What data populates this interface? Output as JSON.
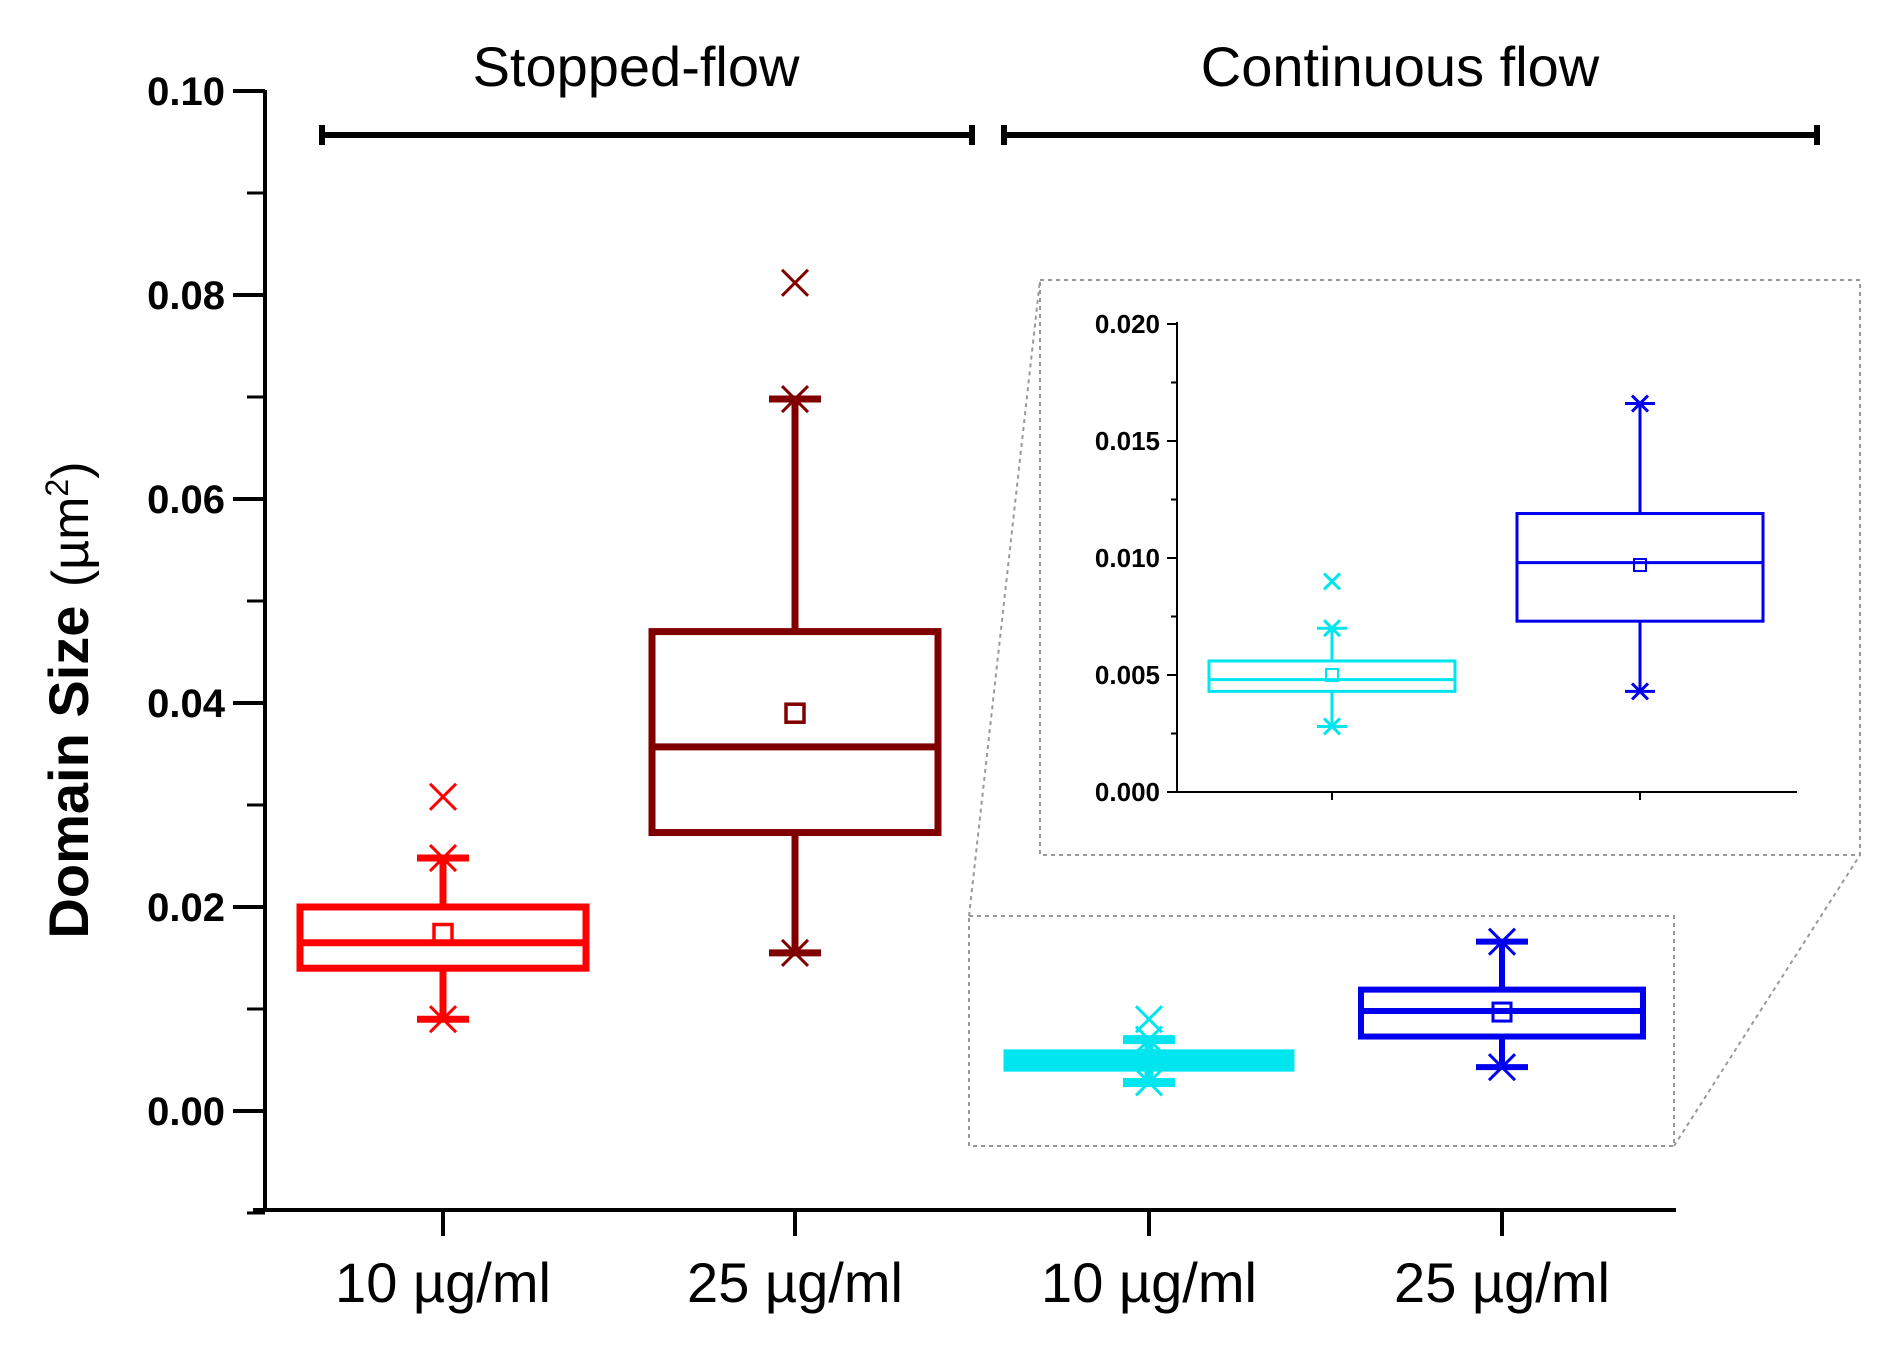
{
  "chart_data": {
    "type": "box",
    "ylabel": "Domain Size",
    "ylabel_unit_prefix": "(µm",
    "ylabel_unit_sup": "2",
    "ylabel_unit_suffix": ")",
    "ylim": [
      -0.01,
      0.1
    ],
    "yticks": [
      "0.00",
      "0.02",
      "0.04",
      "0.06",
      "0.08",
      "0.10"
    ],
    "groups": [
      {
        "label": "Stopped-flow"
      },
      {
        "label": "Continuous flow"
      }
    ],
    "boxes": [
      {
        "category": "10 µg/ml",
        "group": "Stopped-flow",
        "color": "#ff0000",
        "min": 0.009,
        "q1": 0.014,
        "median": 0.0165,
        "q3": 0.02,
        "max": 0.0248,
        "mean": 0.0174,
        "outliers": [
          0.0308
        ]
      },
      {
        "category": "25 µg/ml",
        "group": "Stopped-flow",
        "color": "#800000",
        "min": 0.0155,
        "q1": 0.0273,
        "median": 0.0357,
        "q3": 0.047,
        "max": 0.0698,
        "mean": 0.039,
        "outliers": [
          0.0812
        ]
      },
      {
        "category": "10 µg/ml",
        "group": "Continuous flow",
        "color": "#00e5ee",
        "min": 0.0028,
        "q1": 0.0043,
        "median": 0.0048,
        "q3": 0.0056,
        "max": 0.007,
        "mean": 0.005,
        "outliers": [
          0.009
        ]
      },
      {
        "category": "25 µg/ml",
        "group": "Continuous flow",
        "color": "#0000ee",
        "min": 0.0043,
        "q1": 0.0073,
        "median": 0.0098,
        "q3": 0.0119,
        "max": 0.0166,
        "mean": 0.0097,
        "outliers": []
      }
    ],
    "inset": {
      "ylim": [
        0.0,
        0.02
      ],
      "yticks": [
        "0.000",
        "0.005",
        "0.010",
        "0.015",
        "0.020"
      ],
      "series_indices": [
        2,
        3
      ]
    }
  }
}
